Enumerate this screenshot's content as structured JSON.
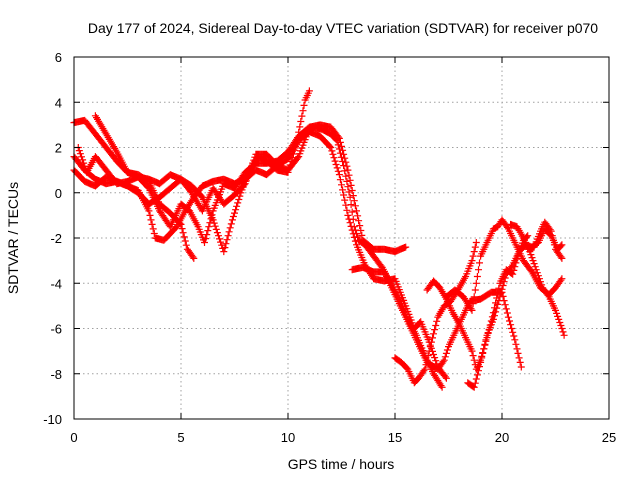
{
  "chart_data": {
    "type": "scatter",
    "title": "Day 177 of 2024, Sidereal Day-to-day VTEC variation (SDTVAR) for receiver p070",
    "xlabel": "GPS time / hours",
    "ylabel": "SDTVAR / TECUs",
    "xlim": [
      0,
      25
    ],
    "ylim": [
      -10,
      6
    ],
    "xticks": [
      0,
      5,
      10,
      15,
      20,
      25
    ],
    "yticks": [
      -10,
      -8,
      -6,
      -4,
      -2,
      0,
      2,
      4,
      6
    ],
    "grid": true,
    "marker": "+",
    "color": "#ff0000",
    "series": [
      {
        "points": [
          [
            0.0,
            3.1
          ],
          [
            0.5,
            3.2
          ],
          [
            1.0,
            2.6
          ],
          [
            1.5,
            2.0
          ],
          [
            2.0,
            1.4
          ],
          [
            2.5,
            0.9
          ],
          [
            3.0,
            0.8
          ],
          [
            3.5,
            0.5
          ],
          [
            4.0,
            -0.5
          ],
          [
            4.5,
            -0.9
          ],
          [
            5.0,
            -1.4
          ],
          [
            5.3,
            -2.5
          ],
          [
            5.6,
            -2.9
          ]
        ]
      },
      {
        "points": [
          [
            0.0,
            1.6
          ],
          [
            0.5,
            1.0
          ],
          [
            1.0,
            0.6
          ],
          [
            1.5,
            0.4
          ],
          [
            2.0,
            0.5
          ],
          [
            2.5,
            0.3
          ],
          [
            3.0,
            0.1
          ],
          [
            3.5,
            -0.8
          ],
          [
            3.8,
            -2.0
          ],
          [
            4.2,
            -2.1
          ],
          [
            4.8,
            -1.5
          ],
          [
            5.2,
            -0.8
          ],
          [
            5.6,
            -0.2
          ],
          [
            6.0,
            0.3
          ],
          [
            6.5,
            0.5
          ],
          [
            7.0,
            0.6
          ],
          [
            7.5,
            0.4
          ],
          [
            8.0,
            0.6
          ],
          [
            8.5,
            1.0
          ],
          [
            9.0,
            0.8
          ],
          [
            9.5,
            1.2
          ],
          [
            10.0,
            1.0
          ],
          [
            10.5,
            1.6
          ],
          [
            10.9,
            2.6
          ],
          [
            11.2,
            2.9
          ],
          [
            11.6,
            2.8
          ],
          [
            12.0,
            2.6
          ],
          [
            12.3,
            2.3
          ],
          [
            12.6,
            1.2
          ],
          [
            12.9,
            -0.2
          ],
          [
            13.1,
            -1.5
          ],
          [
            13.3,
            -2.1
          ],
          [
            13.6,
            -2.3
          ],
          [
            14.0,
            -2.8
          ],
          [
            14.4,
            -3.3
          ],
          [
            14.8,
            -4.0
          ],
          [
            15.2,
            -4.7
          ],
          [
            15.6,
            -5.6
          ],
          [
            16.0,
            -6.3
          ],
          [
            16.4,
            -7.2
          ],
          [
            16.8,
            -8.0
          ],
          [
            17.2,
            -8.6
          ]
        ]
      },
      {
        "points": [
          [
            0.0,
            1.0
          ],
          [
            0.5,
            0.5
          ],
          [
            1.0,
            0.3
          ],
          [
            1.5,
            0.7
          ],
          [
            2.0,
            0.5
          ],
          [
            2.5,
            0.3
          ],
          [
            3.0,
            0.0
          ],
          [
            3.5,
            -0.5
          ],
          [
            4.0,
            -0.2
          ],
          [
            4.5,
            0.2
          ],
          [
            5.0,
            0.6
          ],
          [
            5.5,
            0.3
          ],
          [
            6.0,
            -0.2
          ],
          [
            6.5,
            -1.2
          ],
          [
            7.0,
            -2.6
          ],
          [
            7.4,
            -1.2
          ],
          [
            7.8,
            0.0
          ],
          [
            8.2,
            1.0
          ],
          [
            8.6,
            1.6
          ],
          [
            9.0,
            1.4
          ],
          [
            9.5,
            1.0
          ],
          [
            10.0,
            0.9
          ],
          [
            10.4,
            2.2
          ],
          [
            10.8,
            4.1
          ],
          [
            11.0,
            4.5
          ]
        ]
      },
      {
        "points": [
          [
            0.2,
            2.0
          ],
          [
            0.6,
            0.9
          ],
          [
            1.0,
            1.6
          ],
          [
            1.5,
            1.0
          ],
          [
            2.0,
            0.4
          ],
          [
            2.5,
            0.5
          ],
          [
            3.0,
            0.7
          ],
          [
            3.5,
            0.2
          ],
          [
            4.0,
            -0.8
          ],
          [
            4.5,
            -1.5
          ],
          [
            5.0,
            -0.5
          ],
          [
            5.4,
            -0.8
          ],
          [
            5.8,
            -1.5
          ],
          [
            6.1,
            -2.2
          ],
          [
            6.5,
            -0.8
          ],
          [
            7.0,
            0.4
          ],
          [
            7.5,
            0.2
          ],
          [
            8.0,
            0.9
          ],
          [
            8.5,
            1.3
          ],
          [
            9.0,
            1.3
          ],
          [
            9.5,
            1.4
          ],
          [
            10.0,
            1.8
          ],
          [
            10.5,
            2.5
          ],
          [
            11.0,
            2.9
          ],
          [
            11.5,
            3.0
          ],
          [
            12.0,
            2.9
          ],
          [
            12.4,
            2.4
          ],
          [
            12.8,
            1.0
          ],
          [
            13.2,
            -0.8
          ],
          [
            13.5,
            -2.1
          ],
          [
            14.0,
            -2.5
          ],
          [
            14.5,
            -2.5
          ],
          [
            15.0,
            -2.6
          ],
          [
            15.5,
            -2.4
          ]
        ]
      },
      {
        "points": [
          [
            1.0,
            3.4
          ],
          [
            1.5,
            2.6
          ],
          [
            2.0,
            1.8
          ],
          [
            2.5,
            0.9
          ],
          [
            3.0,
            0.7
          ],
          [
            3.5,
            0.6
          ],
          [
            4.0,
            0.4
          ],
          [
            4.5,
            0.8
          ],
          [
            5.0,
            0.6
          ],
          [
            5.5,
            0.0
          ],
          [
            6.0,
            -0.8
          ],
          [
            6.5,
            0.2
          ],
          [
            7.0,
            -0.5
          ],
          [
            7.5,
            -0.1
          ],
          [
            8.0,
            0.4
          ],
          [
            8.5,
            1.7
          ],
          [
            9.0,
            1.7
          ],
          [
            9.5,
            1.2
          ],
          [
            10.0,
            1.5
          ],
          [
            10.5,
            2.3
          ],
          [
            11.0,
            2.7
          ],
          [
            11.5,
            2.5
          ],
          [
            12.0,
            2.0
          ],
          [
            12.4,
            0.8
          ],
          [
            12.8,
            -1.0
          ],
          [
            13.2,
            -2.3
          ],
          [
            13.6,
            -3.2
          ],
          [
            14.0,
            -3.8
          ],
          [
            14.5,
            -3.9
          ],
          [
            15.0,
            -3.8
          ],
          [
            15.5,
            -5.0
          ],
          [
            15.9,
            -6.0
          ],
          [
            16.2,
            -5.7
          ],
          [
            16.6,
            -6.6
          ],
          [
            17.0,
            -7.7
          ],
          [
            17.4,
            -8.2
          ]
        ]
      },
      {
        "points": [
          [
            13.0,
            -3.4
          ],
          [
            13.5,
            -3.3
          ],
          [
            14.0,
            -3.5
          ],
          [
            14.5,
            -3.5
          ],
          [
            15.0,
            -4.5
          ],
          [
            15.5,
            -5.5
          ],
          [
            16.0,
            -6.5
          ],
          [
            16.5,
            -7.5
          ],
          [
            17.0,
            -7.8
          ],
          [
            17.3,
            -7.4
          ],
          [
            17.5,
            -6.8
          ],
          [
            17.8,
            -6.2
          ],
          [
            18.0,
            -5.8
          ],
          [
            18.5,
            -4.8
          ],
          [
            19.0,
            -4.7
          ],
          [
            19.5,
            -4.4
          ],
          [
            20.0,
            -4.4
          ],
          [
            20.3,
            -5.5
          ],
          [
            20.6,
            -6.5
          ],
          [
            20.9,
            -7.7
          ]
        ]
      },
      {
        "points": [
          [
            15.0,
            -7.3
          ],
          [
            15.3,
            -7.5
          ],
          [
            15.6,
            -7.8
          ],
          [
            15.9,
            -8.4
          ],
          [
            16.1,
            -8.2
          ],
          [
            16.4,
            -7.8
          ],
          [
            16.7,
            -6.6
          ],
          [
            17.0,
            -5.5
          ],
          [
            17.3,
            -5.0
          ],
          [
            17.6,
            -4.8
          ],
          [
            18.0,
            -4.2
          ],
          [
            18.3,
            -3.7
          ],
          [
            18.6,
            -3.0
          ],
          [
            18.8,
            -2.2
          ]
        ]
      },
      {
        "points": [
          [
            16.5,
            -4.3
          ],
          [
            16.8,
            -3.9
          ],
          [
            17.1,
            -4.2
          ],
          [
            17.4,
            -4.7
          ],
          [
            17.7,
            -5.3
          ],
          [
            18.0,
            -5.8
          ],
          [
            18.3,
            -6.4
          ],
          [
            18.6,
            -7.0
          ],
          [
            18.8,
            -7.8
          ],
          [
            19.0,
            -7.4
          ],
          [
            19.3,
            -6.4
          ],
          [
            19.6,
            -5.3
          ],
          [
            19.9,
            -4.0
          ],
          [
            20.2,
            -3.4
          ],
          [
            20.5,
            -3.6
          ],
          [
            20.8,
            -2.6
          ],
          [
            21.0,
            -2.1
          ],
          [
            21.2,
            -1.9
          ]
        ]
      },
      {
        "points": [
          [
            17.4,
            -4.6
          ],
          [
            17.8,
            -4.3
          ],
          [
            18.2,
            -4.6
          ],
          [
            18.6,
            -5.2
          ],
          [
            18.8,
            -4.0
          ],
          [
            19.0,
            -2.8
          ],
          [
            19.3,
            -2.2
          ],
          [
            19.6,
            -1.6
          ],
          [
            19.8,
            -1.5
          ],
          [
            20.0,
            -1.2
          ],
          [
            20.3,
            -1.6
          ],
          [
            20.6,
            -2.2
          ],
          [
            21.0,
            -3.0
          ],
          [
            21.4,
            -3.5
          ],
          [
            21.8,
            -4.2
          ],
          [
            22.2,
            -4.5
          ],
          [
            22.5,
            -4.2
          ],
          [
            22.8,
            -3.8
          ]
        ]
      },
      {
        "points": [
          [
            18.4,
            -8.4
          ],
          [
            18.7,
            -8.6
          ],
          [
            19.0,
            -7.5
          ],
          [
            19.3,
            -6.3
          ],
          [
            19.6,
            -5.6
          ],
          [
            19.9,
            -4.6
          ],
          [
            20.2,
            -3.6
          ],
          [
            20.5,
            -3.2
          ],
          [
            20.8,
            -2.6
          ],
          [
            21.1,
            -2.3
          ],
          [
            21.4,
            -2.4
          ],
          [
            21.7,
            -2.2
          ],
          [
            22.0,
            -1.6
          ],
          [
            22.3,
            -1.9
          ],
          [
            22.6,
            -2.5
          ],
          [
            22.8,
            -2.3
          ]
        ]
      },
      {
        "points": [
          [
            20.4,
            -1.4
          ],
          [
            20.7,
            -1.5
          ],
          [
            21.0,
            -2.0
          ],
          [
            21.3,
            -2.6
          ],
          [
            21.6,
            -3.4
          ],
          [
            21.9,
            -4.2
          ],
          [
            22.2,
            -4.6
          ],
          [
            22.5,
            -5.2
          ],
          [
            22.8,
            -6.0
          ],
          [
            22.9,
            -6.3
          ]
        ]
      },
      {
        "points": [
          [
            21.2,
            -2.5
          ],
          [
            21.5,
            -2.4
          ],
          [
            21.8,
            -1.7
          ],
          [
            22.0,
            -1.3
          ],
          [
            22.3,
            -1.7
          ],
          [
            22.5,
            -2.5
          ],
          [
            22.8,
            -2.9
          ]
        ]
      }
    ]
  }
}
